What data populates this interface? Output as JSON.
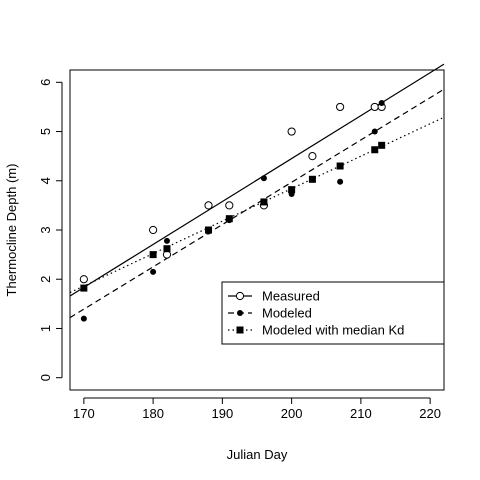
{
  "chart_data": {
    "type": "scatter",
    "title": "",
    "xlabel": "Julian Day",
    "ylabel": "Thermocline Depth (m)",
    "xlim": [
      168,
      222
    ],
    "ylim": [
      -0.25,
      6.25
    ],
    "xticks": [
      170,
      180,
      190,
      200,
      210,
      220
    ],
    "yticks": [
      0,
      1,
      2,
      3,
      4,
      5,
      6
    ],
    "grid": false,
    "legend_position": "bottom-right",
    "series": [
      {
        "name": "Measured",
        "marker": "open-circle",
        "line_style": "solid",
        "points": [
          [
            170,
            2.0
          ],
          [
            180,
            3.0
          ],
          [
            182,
            2.5
          ],
          [
            188,
            3.5
          ],
          [
            191,
            3.5
          ],
          [
            196,
            3.5
          ],
          [
            200,
            5.0
          ],
          [
            203,
            4.5
          ],
          [
            207,
            5.5
          ],
          [
            212,
            5.5
          ],
          [
            213,
            5.5
          ]
        ],
        "fit_line": [
          [
            168,
            1.66
          ],
          [
            222,
            6.37
          ]
        ]
      },
      {
        "name": "Modeled",
        "marker": "filled-circle",
        "line_style": "dashed",
        "points": [
          [
            170,
            1.2
          ],
          [
            180,
            2.15
          ],
          [
            182,
            2.78
          ],
          [
            188,
            2.97
          ],
          [
            191,
            3.2
          ],
          [
            196,
            4.05
          ],
          [
            200,
            3.73
          ],
          [
            203,
            4.03
          ],
          [
            207,
            3.98
          ],
          [
            212,
            5.0
          ],
          [
            213,
            5.58
          ]
        ],
        "fit_line": [
          [
            168,
            1.22
          ],
          [
            222,
            5.86
          ]
        ]
      },
      {
        "name": "Modeled with median Kd",
        "marker": "filled-square",
        "line_style": "dotted",
        "points": [
          [
            170,
            1.82
          ],
          [
            180,
            2.5
          ],
          [
            182,
            2.62
          ],
          [
            188,
            3.0
          ],
          [
            191,
            3.23
          ],
          [
            196,
            3.57
          ],
          [
            200,
            3.82
          ],
          [
            203,
            4.03
          ],
          [
            207,
            4.3
          ],
          [
            212,
            4.63
          ],
          [
            213,
            4.72
          ]
        ],
        "fit_line": [
          [
            168,
            1.73
          ],
          [
            222,
            5.29
          ]
        ]
      }
    ]
  }
}
